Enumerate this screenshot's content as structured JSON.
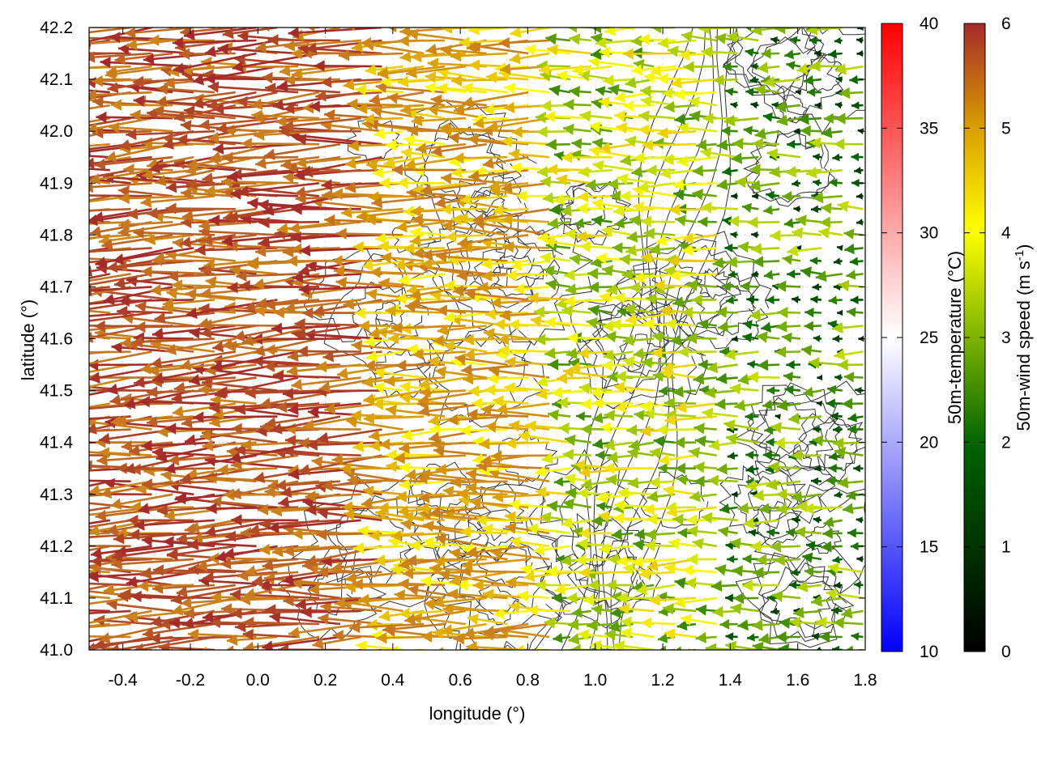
{
  "chart_data": {
    "type": "vector-field",
    "xlabel": "longitude (°)",
    "ylabel": "latitude (°)",
    "xlim": [
      -0.5,
      1.8
    ],
    "ylim": [
      41.0,
      42.2
    ],
    "x_ticks": [
      "-0.4",
      "-0.2",
      "0.0",
      "0.2",
      "0.4",
      "0.6",
      "0.8",
      "1.0",
      "1.2",
      "1.4",
      "1.6",
      "1.8"
    ],
    "y_ticks": [
      "41.0",
      "41.1",
      "41.2",
      "41.3",
      "41.4",
      "41.5",
      "41.6",
      "41.7",
      "41.8",
      "41.9",
      "42.0",
      "42.1",
      "42.2"
    ],
    "grid": true,
    "background_contours": "terrain elevation isolines (dark gray)",
    "vector_field": {
      "description": "50 m wind vectors on a regular grid, predominantly from the east; strongest (about 6 m/s) over the western half, weak (1-2 m/s) in the east",
      "regions": [
        {
          "lon_range": [
            -0.5,
            0.4
          ],
          "lat_range": [
            41.0,
            42.2
          ],
          "typical_speed": 6.0,
          "direction": "westward"
        },
        {
          "lon_range": [
            0.4,
            0.9
          ],
          "lat_range": [
            41.0,
            42.2
          ],
          "typical_speed": 4.0,
          "direction": "westward"
        },
        {
          "lon_range": [
            0.9,
            1.4
          ],
          "lat_range": [
            41.0,
            42.2
          ],
          "typical_speed": 2.5,
          "direction": "westward"
        },
        {
          "lon_range": [
            1.4,
            1.8
          ],
          "lat_range": [
            41.0,
            42.2
          ],
          "typical_speed": 1.5,
          "direction": "westward"
        }
      ]
    },
    "colorbars": [
      {
        "label": "50m-temperature (°C)",
        "range": [
          10,
          40
        ],
        "ticks": [
          "10",
          "15",
          "20",
          "25",
          "30",
          "35",
          "40"
        ],
        "colors": [
          "#0000ff",
          "#ffffff",
          "#ff0000"
        ]
      },
      {
        "label": "50m-wind speed (m s⁻¹)",
        "label_main": "50m-wind speed (m s",
        "label_sup": "-1",
        "label_end": ")",
        "range": [
          0,
          6
        ],
        "ticks": [
          "0",
          "1",
          "2",
          "3",
          "4",
          "5",
          "6"
        ],
        "colors": [
          "#000000",
          "#006400",
          "#7cb300",
          "#ffff00",
          "#dba000",
          "#c87a20",
          "#a52a2a"
        ]
      }
    ]
  }
}
